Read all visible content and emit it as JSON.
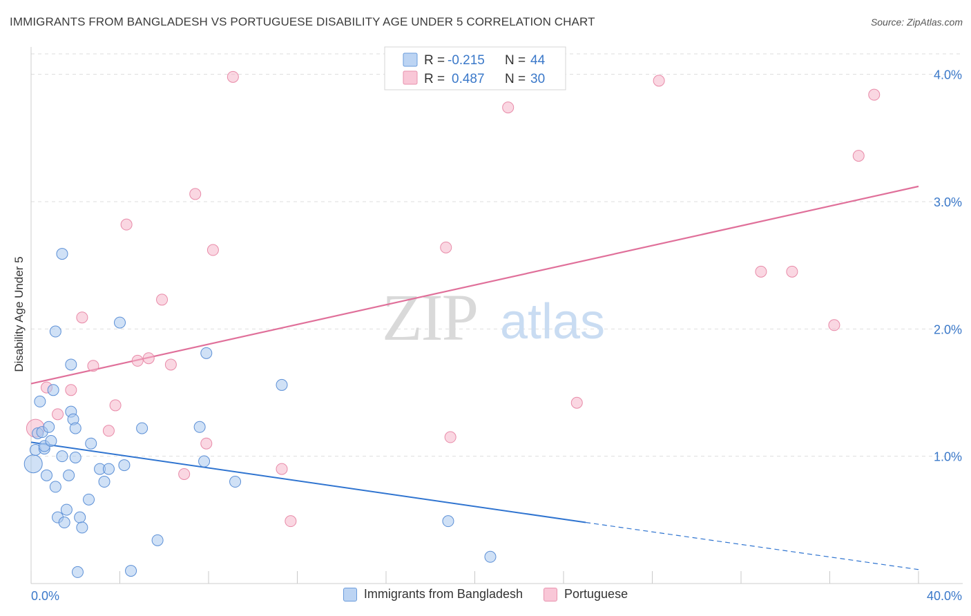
{
  "title": "IMMIGRANTS FROM BANGLADESH VS PORTUGUESE DISABILITY AGE UNDER 5 CORRELATION CHART",
  "source": "Source: ZipAtlas.com",
  "watermark": {
    "zip": "ZIP",
    "atlas": "atlas"
  },
  "colors": {
    "blue_fill": "#a9c8ef",
    "blue_stroke": "#5b8fd6",
    "blue_line": "#2f74d0",
    "pink_fill": "#f6b6cb",
    "pink_stroke": "#e88aa8",
    "pink_line": "#e0709a",
    "axis_label": "#3a78c9",
    "grid": "#dddddd"
  },
  "legend_top": [
    {
      "r_label": "R =",
      "r_value": "-0.215",
      "n_label": "N =",
      "n_value": "44"
    },
    {
      "r_label": "R =",
      "r_value": "0.487",
      "n_label": "N =",
      "n_value": "30"
    }
  ],
  "legend_bottom": [
    "Immigrants from Bangladesh",
    "Portuguese"
  ],
  "chart_data": {
    "type": "scatter",
    "title": "IMMIGRANTS FROM BANGLADESH VS PORTUGUESE DISABILITY AGE UNDER 5 CORRELATION CHART",
    "xlabel": "",
    "ylabel": "Disability Age Under 5",
    "xlim": [
      0,
      40
    ],
    "ylim": [
      0,
      4.15
    ],
    "x_tick_labels": [
      "0.0%",
      "40.0%"
    ],
    "y_ticks": [
      1,
      2,
      3,
      4
    ],
    "y_tick_labels": [
      "1.0%",
      "2.0%",
      "3.0%",
      "4.0%"
    ],
    "series": [
      {
        "name": "Immigrants from Bangladesh",
        "points": [
          [
            0.1,
            0.94
          ],
          [
            0.2,
            1.05
          ],
          [
            0.3,
            1.18
          ],
          [
            0.4,
            1.43
          ],
          [
            0.5,
            1.19
          ],
          [
            0.6,
            1.06
          ],
          [
            0.6,
            1.08
          ],
          [
            0.7,
            0.85
          ],
          [
            0.8,
            1.23
          ],
          [
            0.9,
            1.12
          ],
          [
            1.0,
            1.52
          ],
          [
            1.1,
            0.76
          ],
          [
            1.1,
            1.98
          ],
          [
            1.2,
            0.52
          ],
          [
            1.4,
            2.59
          ],
          [
            1.4,
            1.0
          ],
          [
            1.5,
            0.48
          ],
          [
            1.6,
            0.58
          ],
          [
            1.7,
            0.85
          ],
          [
            1.8,
            1.35
          ],
          [
            1.8,
            1.72
          ],
          [
            1.9,
            1.29
          ],
          [
            2.0,
            1.22
          ],
          [
            2.0,
            0.99
          ],
          [
            2.1,
            0.09
          ],
          [
            2.2,
            0.52
          ],
          [
            2.3,
            0.44
          ],
          [
            2.6,
            0.66
          ],
          [
            2.7,
            1.1
          ],
          [
            3.1,
            0.9
          ],
          [
            3.3,
            0.8
          ],
          [
            3.5,
            0.9
          ],
          [
            4.0,
            2.05
          ],
          [
            4.2,
            0.93
          ],
          [
            4.5,
            0.1
          ],
          [
            5.0,
            1.22
          ],
          [
            5.7,
            0.34
          ],
          [
            7.6,
            1.23
          ],
          [
            7.8,
            0.96
          ],
          [
            7.9,
            1.81
          ],
          [
            9.2,
            0.8
          ],
          [
            11.3,
            1.56
          ],
          [
            18.8,
            0.49
          ],
          [
            20.7,
            0.21
          ]
        ],
        "trend": {
          "x0": 0,
          "y0": 1.11,
          "x1": 25,
          "y1": 0.48,
          "dashed_to_x": 40,
          "dashed_to_y": 0.11
        }
      },
      {
        "name": "Portuguese",
        "points": [
          [
            0.2,
            1.22
          ],
          [
            0.7,
            1.54
          ],
          [
            1.2,
            1.33
          ],
          [
            1.8,
            1.52
          ],
          [
            2.3,
            2.09
          ],
          [
            2.8,
            1.71
          ],
          [
            3.5,
            1.2
          ],
          [
            3.8,
            1.4
          ],
          [
            4.3,
            2.82
          ],
          [
            4.8,
            1.75
          ],
          [
            5.3,
            1.77
          ],
          [
            5.9,
            2.23
          ],
          [
            6.3,
            1.72
          ],
          [
            6.9,
            0.86
          ],
          [
            7.4,
            3.06
          ],
          [
            7.9,
            1.1
          ],
          [
            8.2,
            2.62
          ],
          [
            9.1,
            3.98
          ],
          [
            11.3,
            0.9
          ],
          [
            11.7,
            0.49
          ],
          [
            18.7,
            2.64
          ],
          [
            18.9,
            1.15
          ],
          [
            21.5,
            3.74
          ],
          [
            24.6,
            1.42
          ],
          [
            28.3,
            3.95
          ],
          [
            32.9,
            2.45
          ],
          [
            34.3,
            2.45
          ],
          [
            36.2,
            2.03
          ],
          [
            37.3,
            3.36
          ],
          [
            38.0,
            3.84
          ]
        ],
        "trend": {
          "x0": 0,
          "y0": 1.57,
          "x1": 40,
          "y1": 3.12
        }
      }
    ]
  }
}
